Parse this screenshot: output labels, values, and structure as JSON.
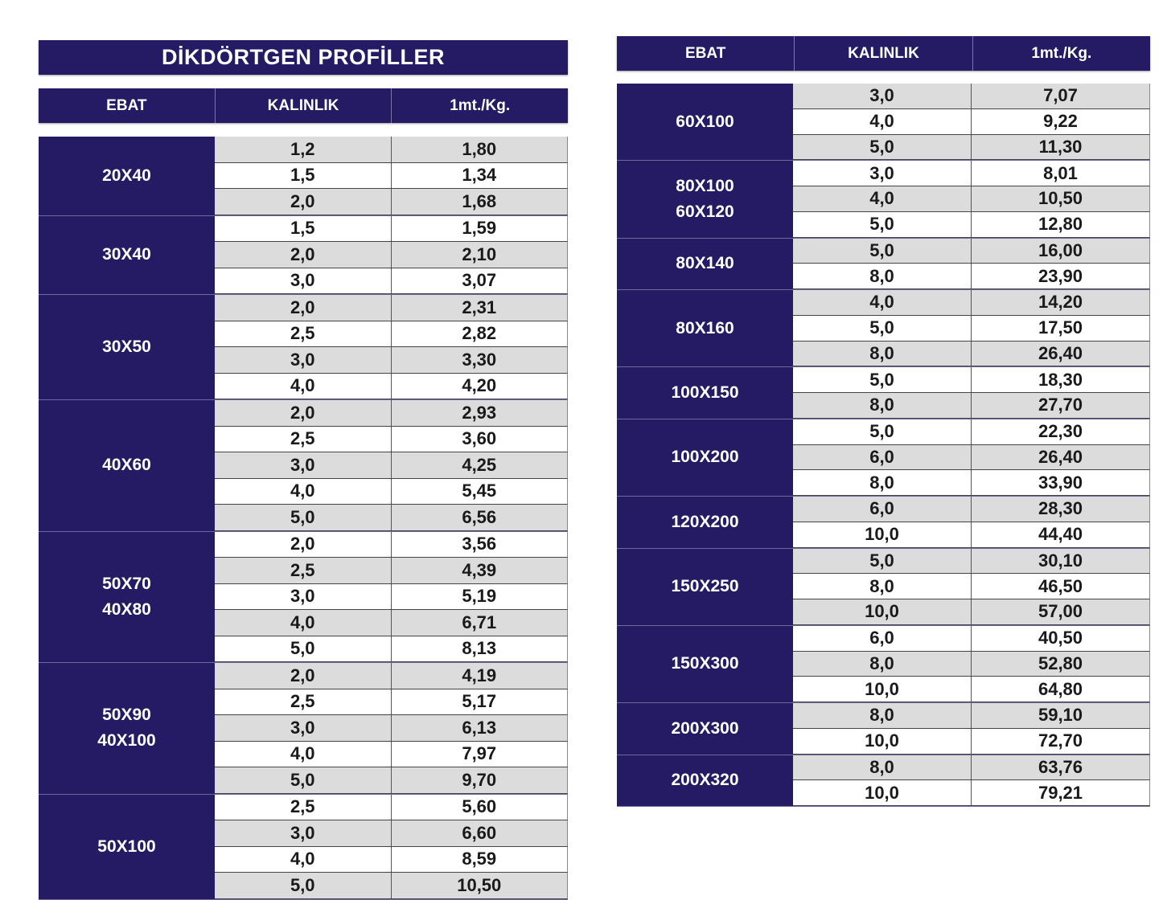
{
  "title": "DİKDÖRTGEN PROFİLLER",
  "colors": {
    "header": "#241b64",
    "row_gray": "#dcdcdc",
    "row_white": "#ffffff"
  },
  "columns": [
    "EBAT",
    "KALINLIK",
    "1mt./Kg."
  ],
  "left_table": [
    {
      "ebat": [
        "20X40"
      ],
      "rows": [
        [
          "1,2",
          "1,80"
        ],
        [
          "1,5",
          "1,34"
        ],
        [
          "2,0",
          "1,68"
        ]
      ]
    },
    {
      "ebat": [
        "30X40"
      ],
      "rows": [
        [
          "1,5",
          "1,59"
        ],
        [
          "2,0",
          "2,10"
        ],
        [
          "3,0",
          "3,07"
        ]
      ]
    },
    {
      "ebat": [
        "30X50"
      ],
      "rows": [
        [
          "2,0",
          "2,31"
        ],
        [
          "2,5",
          "2,82"
        ],
        [
          "3,0",
          "3,30"
        ],
        [
          "4,0",
          "4,20"
        ]
      ]
    },
    {
      "ebat": [
        "40X60"
      ],
      "rows": [
        [
          "2,0",
          "2,93"
        ],
        [
          "2,5",
          "3,60"
        ],
        [
          "3,0",
          "4,25"
        ],
        [
          "4,0",
          "5,45"
        ],
        [
          "5,0",
          "6,56"
        ]
      ]
    },
    {
      "ebat": [
        "50X70",
        "40X80"
      ],
      "rows": [
        [
          "2,0",
          "3,56"
        ],
        [
          "2,5",
          "4,39"
        ],
        [
          "3,0",
          "5,19"
        ],
        [
          "4,0",
          "6,71"
        ],
        [
          "5,0",
          "8,13"
        ]
      ]
    },
    {
      "ebat": [
        "50X90",
        "40X100"
      ],
      "rows": [
        [
          "2,0",
          "4,19"
        ],
        [
          "2,5",
          "5,17"
        ],
        [
          "3,0",
          "6,13"
        ],
        [
          "4,0",
          "7,97"
        ],
        [
          "5,0",
          "9,70"
        ]
      ]
    },
    {
      "ebat": [
        "50X100"
      ],
      "rows": [
        [
          "2,5",
          "5,60"
        ],
        [
          "3,0",
          "6,60"
        ],
        [
          "4,0",
          "8,59"
        ],
        [
          "5,0",
          "10,50"
        ]
      ]
    }
  ],
  "right_table": [
    {
      "ebat": [
        "60X100"
      ],
      "rows": [
        [
          "3,0",
          "7,07"
        ],
        [
          "4,0",
          "9,22"
        ],
        [
          "5,0",
          "11,30"
        ]
      ]
    },
    {
      "ebat": [
        "80X100",
        "60X120"
      ],
      "rows": [
        [
          "3,0",
          "8,01"
        ],
        [
          "4,0",
          "10,50"
        ],
        [
          "5,0",
          "12,80"
        ]
      ]
    },
    {
      "ebat": [
        "80X140"
      ],
      "rows": [
        [
          "5,0",
          "16,00"
        ],
        [
          "8,0",
          "23,90"
        ]
      ]
    },
    {
      "ebat": [
        "80X160"
      ],
      "rows": [
        [
          "4,0",
          "14,20"
        ],
        [
          "5,0",
          "17,50"
        ],
        [
          "8,0",
          "26,40"
        ]
      ]
    },
    {
      "ebat": [
        "100X150"
      ],
      "rows": [
        [
          "5,0",
          "18,30"
        ],
        [
          "8,0",
          "27,70"
        ]
      ]
    },
    {
      "ebat": [
        "100X200"
      ],
      "rows": [
        [
          "5,0",
          "22,30"
        ],
        [
          "6,0",
          "26,40"
        ],
        [
          "8,0",
          "33,90"
        ]
      ]
    },
    {
      "ebat": [
        "120X200"
      ],
      "rows": [
        [
          "6,0",
          "28,30"
        ],
        [
          "10,0",
          "44,40"
        ]
      ]
    },
    {
      "ebat": [
        "150X250"
      ],
      "rows": [
        [
          "5,0",
          "30,10"
        ],
        [
          "8,0",
          "46,50"
        ],
        [
          "10,0",
          "57,00"
        ]
      ]
    },
    {
      "ebat": [
        "150X300"
      ],
      "rows": [
        [
          "6,0",
          "40,50"
        ],
        [
          "8,0",
          "52,80"
        ],
        [
          "10,0",
          "64,80"
        ]
      ]
    },
    {
      "ebat": [
        "200X300"
      ],
      "rows": [
        [
          "8,0",
          "59,10"
        ],
        [
          "10,0",
          "72,70"
        ]
      ]
    },
    {
      "ebat": [
        "200X320"
      ],
      "rows": [
        [
          "8,0",
          "63,76"
        ],
        [
          "10,0",
          "79,21"
        ]
      ]
    }
  ]
}
